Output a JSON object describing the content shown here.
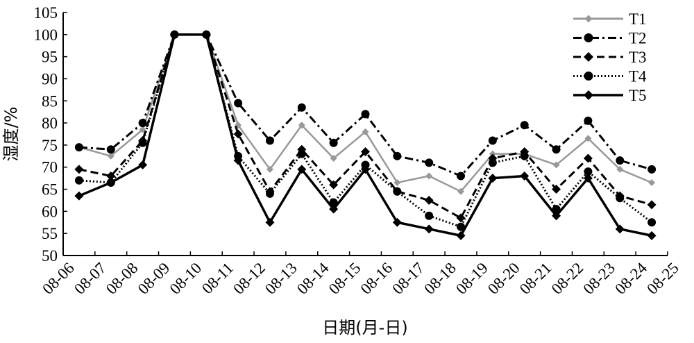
{
  "chart_data": {
    "type": "line",
    "xlabel": "日期(月-日)",
    "ylabel": "湿度/%",
    "x_ticks": [
      "08-06",
      "08-07",
      "08-08",
      "08-09",
      "08-10",
      "08-11",
      "08-12",
      "08-13",
      "08-14",
      "08-15",
      "08-16",
      "08-17",
      "08-18",
      "08-19",
      "08-20",
      "08-21",
      "08-22",
      "08-23",
      "08-24",
      "08-25"
    ],
    "y_ticks": [
      50,
      55,
      60,
      65,
      70,
      75,
      80,
      85,
      90,
      95,
      100,
      105
    ],
    "ylim": [
      50,
      105
    ],
    "x_domain": [
      0,
      19
    ],
    "grid": false,
    "legend_position": "top-right",
    "series": [
      {
        "name": "T1",
        "color": "#999999",
        "dash": "solid",
        "marker": "diamond",
        "x": [
          0.5,
          1.5,
          2.5,
          3.5,
          4.5,
          5.5,
          6.5,
          7.5,
          8.5,
          9.5,
          10.5,
          11.5,
          12.5,
          13.5,
          14.5,
          15.5,
          16.5,
          17.5,
          18.5
        ],
        "values": [
          74.5,
          72.5,
          78.5,
          100,
          100,
          79.5,
          69.5,
          79.5,
          72,
          78,
          66.5,
          68,
          64.5,
          73,
          73,
          70.5,
          76.5,
          69.5,
          66.5
        ]
      },
      {
        "name": "T2",
        "color": "#000000",
        "dash": "dashdot",
        "marker": "circle",
        "x": [
          0.5,
          1.5,
          2.5,
          3.5,
          4.5,
          5.5,
          6.5,
          7.5,
          8.5,
          9.5,
          10.5,
          11.5,
          12.5,
          13.5,
          14.5,
          15.5,
          16.5,
          17.5,
          18.5
        ],
        "values": [
          74.5,
          74,
          80,
          100,
          100,
          84.5,
          76,
          83.5,
          75.5,
          82,
          72.5,
          71,
          68,
          76,
          79.5,
          74,
          80.5,
          71.5,
          69.5
        ]
      },
      {
        "name": "T3",
        "color": "#000000",
        "dash": "dash",
        "marker": "diamond",
        "x": [
          0.5,
          1.5,
          2.5,
          3.5,
          4.5,
          5.5,
          6.5,
          7.5,
          8.5,
          9.5,
          10.5,
          11.5,
          12.5,
          13.5,
          14.5,
          15.5,
          16.5,
          17.5,
          18.5
        ],
        "values": [
          69.5,
          68,
          76,
          100,
          100,
          77.5,
          64.5,
          74,
          66,
          73.5,
          64.5,
          62.5,
          58.5,
          72,
          73.5,
          65,
          72,
          63.5,
          61.5
        ]
      },
      {
        "name": "T4",
        "color": "#000000",
        "dash": "dot",
        "marker": "circle",
        "x": [
          0.5,
          1.5,
          2.5,
          3.5,
          4.5,
          5.5,
          6.5,
          7.5,
          8.5,
          9.5,
          10.5,
          11.5,
          12.5,
          13.5,
          14.5,
          15.5,
          16.5,
          17.5,
          18.5
        ],
        "values": [
          67,
          66.5,
          75.5,
          100,
          100,
          72.5,
          64,
          73,
          62,
          70.5,
          64.5,
          59,
          56.5,
          71,
          72.5,
          60.5,
          69,
          63,
          57.5
        ]
      },
      {
        "name": "T5",
        "color": "#000000",
        "dash": "solid",
        "marker": "diamond",
        "x": [
          0.5,
          1.5,
          2.5,
          3.5,
          4.5,
          5.5,
          6.5,
          7.5,
          8.5,
          9.5,
          10.5,
          11.5,
          12.5,
          13.5,
          14.5,
          15.5,
          16.5,
          17.5,
          18.5
        ],
        "values": [
          63.5,
          66.5,
          70.5,
          100,
          100,
          71.5,
          57.5,
          69.5,
          60.5,
          69.5,
          57.5,
          56,
          54.5,
          67.5,
          68,
          59,
          67.5,
          56,
          54.5
        ]
      }
    ]
  }
}
